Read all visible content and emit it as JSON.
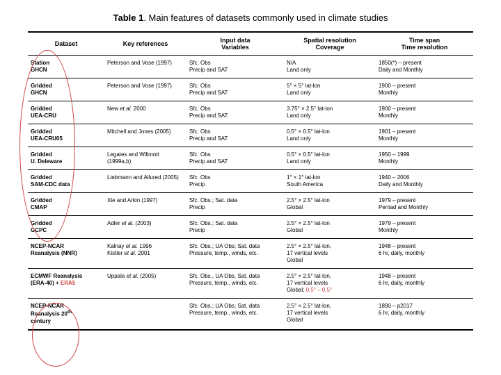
{
  "title_prefix": "Table 1",
  "title_rest": ". Main features of datasets commonly used in climate studies",
  "columns": [
    "Dataset",
    "Key references",
    "Input data - Variables",
    "Spatial resolution - Coverage",
    "Time span - Time resolution"
  ],
  "col_widths": [
    "110px",
    "118px",
    "140px",
    "132px",
    "140px"
  ],
  "rows": [
    {
      "c0a": "Station",
      "c0b": "GHCN",
      "c1": "Peterson and Vose (1997)",
      "c2a": "Sfc. Obs",
      "c2b": "Precip and SAT",
      "c3a": "N/A",
      "c3b": "Land only",
      "c4a": "1850(*) – present",
      "c4b": "Daily and Monthly"
    },
    {
      "c0a": "Gridded",
      "c0b": "GHCN",
      "c1": "Peterson and Vose (1997)",
      "c2a": "Sfc. Obs",
      "c2b": "Precip and SAT",
      "c3a": "5° × 5° lat-lon",
      "c3b": "Land only",
      "c4a": "1900 – present",
      "c4b": "Monthly"
    },
    {
      "c0a": "Gridded",
      "c0b": "UEA-CRU",
      "c1_html": "New <i>et al.</i> 2000",
      "c2a": "Sfc. Obs",
      "c2b": "Precip and SAT",
      "c3a": "3.75° × 2.5° lat-lon",
      "c3b": "Land only",
      "c4a": "1900 – present",
      "c4b": "Monthly"
    },
    {
      "c0a": "Gridded",
      "c0b": "UEA-CRU05",
      "c1": "Mitchell and Jones (2005)",
      "c2a": "Sfc. Obs",
      "c2b": "Precip and SAT",
      "c3a": "0.5° × 0.5° lat-lon",
      "c3b": "Land only",
      "c4a": "1901 – present",
      "c4b": "Monthly"
    },
    {
      "c0a": "Gridded",
      "c0b": "U. Deleware",
      "c1": "Legates and Willmott (1999a,b)",
      "c2a": "Sfc. Obs",
      "c2b": "Precip and SAT",
      "c3a": "0.5° × 0.5° lat-lon",
      "c3b": "Land only",
      "c4a": "1950 – 1999",
      "c4b": "Monthly"
    },
    {
      "c0a": "Gridded",
      "c0b": "SAM-CDC data",
      "c1": "Liebmann and Allured (2005)",
      "c2a": "Sfc. Obs",
      "c2b": "Precip",
      "c3a": "1° × 1° lat-lon",
      "c3b": "South America",
      "c4a": "1940 – 2006",
      "c4b": "Daily and Monthly"
    },
    {
      "c0a": "Gridded",
      "c0b": "CMAP",
      "c1": "Xie and Arkin (1997)",
      "c2a": "Sfc. Obs.; Sat. data",
      "c2b": "Precip",
      "c3a": "2.5° × 2.5° lat-lon",
      "c3b": "Global",
      "c4a": "1979 – present",
      "c4b": "Pentad and Monthly"
    },
    {
      "c0a": "Gridded",
      "c0b": "GCPC",
      "c1_html": "Adler <i>et al.</i> (2003)",
      "c2a": "Sfc. Obs.; Sat. data",
      "c2b": "Precip",
      "c3a": "2.5° × 2.5° lat-lon",
      "c3b": "Global",
      "c4a": "1979 – present",
      "c4b": "Monthly"
    },
    {
      "c0a": "NCEP-NCAR",
      "c0b": "Reanalysis (NNR)",
      "c1_html": "Kalnay <i>et al.</i> 1996<br>Kistler <i>et al.</i> 2001",
      "c2a": "Sfc. Obs.; UA Obs; Sat. data",
      "c2b": "Pressure, temp., winds, etc.",
      "c3_html": "2.5° × 2.5° lat-lon,<br>17 vertical levels<br>Global",
      "c4a": "1948 – present",
      "c4b": "6 hr, daily, monthly"
    },
    {
      "c0_html": "ECMWF Reanalysis<br>(ERA-40) + <span class=\"hl\">ERA5</span>",
      "c1_html": "Uppala <i>et al.</i> (2005)",
      "c2a": "Sfc. Obs., UA Obs, Sat. data",
      "c2b": "Pressure, temp., winds, etc.",
      "c3_html": "2.5° × 2.5° lat-lon,<br>17 vertical levels<br>Global; <span class=\"hl\">0.5° – 0.5°</span>",
      "c4a": "1948 – present",
      "c4b": "6 hr, daily, monthly"
    },
    {
      "c0_html": "NCEP-NCAR<br>Reanalysis 20<sup>th</sup><br>century",
      "c1": "",
      "c2a": "Sfc. Obs.; UA Obs; Sat. data",
      "c2b": "Pressure, temp., winds, etc.",
      "c3_html": "2.5° × 2.5° lat-lon,<br>17 vertical levels<br>Global",
      "c4a": "1890 – p2017",
      "c4b": "6 hr, daily, monthly"
    }
  ]
}
